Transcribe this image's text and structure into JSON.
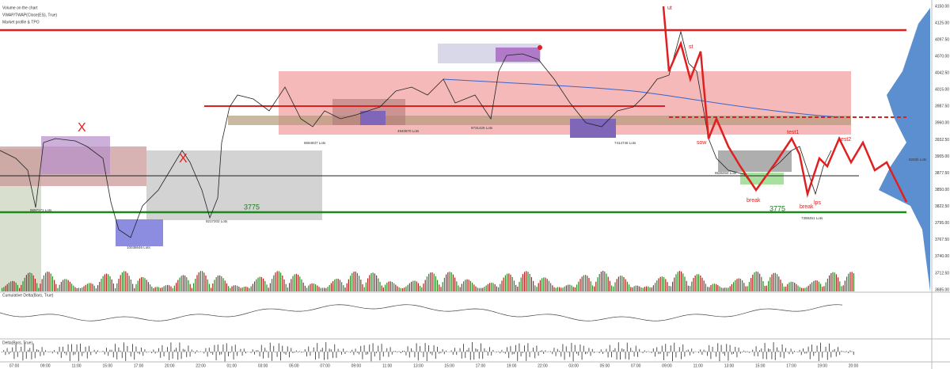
{
  "legend": [
    "Volume on the chart",
    "VWAP/TWAP(Close(ES), True)",
    "Market profile & TPO"
  ],
  "price_axis": [
    "4150.00",
    "4125.00",
    "4097.50",
    "4070.00",
    "4042.50",
    "4015.00",
    "3987.50",
    "3960.00",
    "3932.50",
    "3905.00",
    "3877.50",
    "3850.00",
    "3822.50",
    "3795.00",
    "3767.50",
    "3740.00",
    "3712.50",
    "3685.00"
  ],
  "time_axis": [
    "07:00",
    "09:00",
    "11:00",
    "15:00",
    "17:00",
    "20:00",
    "22:00",
    "01:00",
    "03:00",
    "05:00",
    "07:00",
    "09:00",
    "11:00",
    "13:00",
    "15:00",
    "17:00",
    "19:00",
    "22:00",
    "03:00",
    "05:00",
    "07:00",
    "09:00",
    "11:00",
    "13:00",
    "15:00",
    "17:00",
    "19:00",
    "20:00"
  ],
  "annotations": {
    "levels": [
      "3775",
      "3775"
    ],
    "marks": [
      "X",
      "X"
    ],
    "wyckoff": [
      "ut",
      "st",
      "sow",
      "test1",
      "test2",
      "break",
      "break",
      "lps"
    ],
    "lots": [
      "9697171 Lots",
      "10038646 Lots",
      "9217202 Lots",
      "8694837 Lots",
      "4940870 Lots",
      "9731426 Lots",
      "7414746 Lots",
      "8536464 Lots",
      "7398451 Lots",
      "9202b Lots"
    ]
  },
  "panes": [
    "Cumulative Delta(Bars, True)",
    "Delta(Bars, True)"
  ]
}
